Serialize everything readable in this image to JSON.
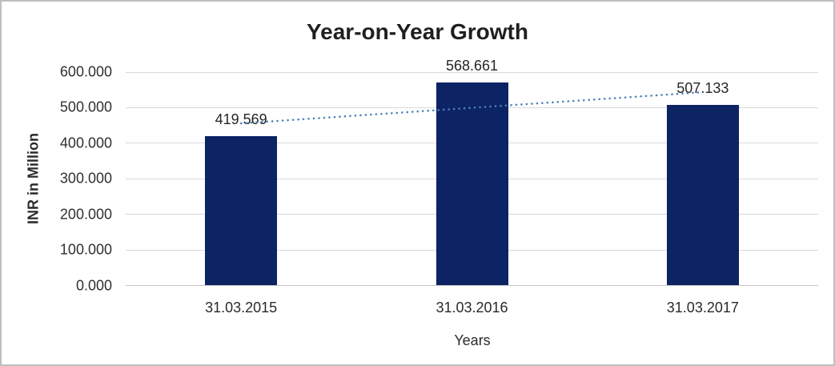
{
  "chart_data": {
    "type": "bar",
    "title": "Year-on-Year Growth",
    "xlabel": "Years",
    "ylabel": "INR in Million",
    "categories": [
      "31.03.2015",
      "31.03.2016",
      "31.03.2017"
    ],
    "values": [
      419.569,
      568.661,
      507.133
    ],
    "data_labels": [
      "419.569",
      "568.661",
      "507.133"
    ],
    "y_tick_labels": [
      "600.000",
      "500.000",
      "400.000",
      "300.000",
      "200.000",
      "100.000",
      "0.000"
    ],
    "ylim": [
      0,
      600
    ],
    "grid": true,
    "legend": "none",
    "bar_color": "#0c2364",
    "gridline_color": "#d9d9d9",
    "axis_line_color": "#c6c6c6",
    "trendline": {
      "style": "dotted",
      "color": "#4f81bd",
      "values_at_categories": [
        454.672,
        498.454,
        542.236
      ]
    }
  }
}
